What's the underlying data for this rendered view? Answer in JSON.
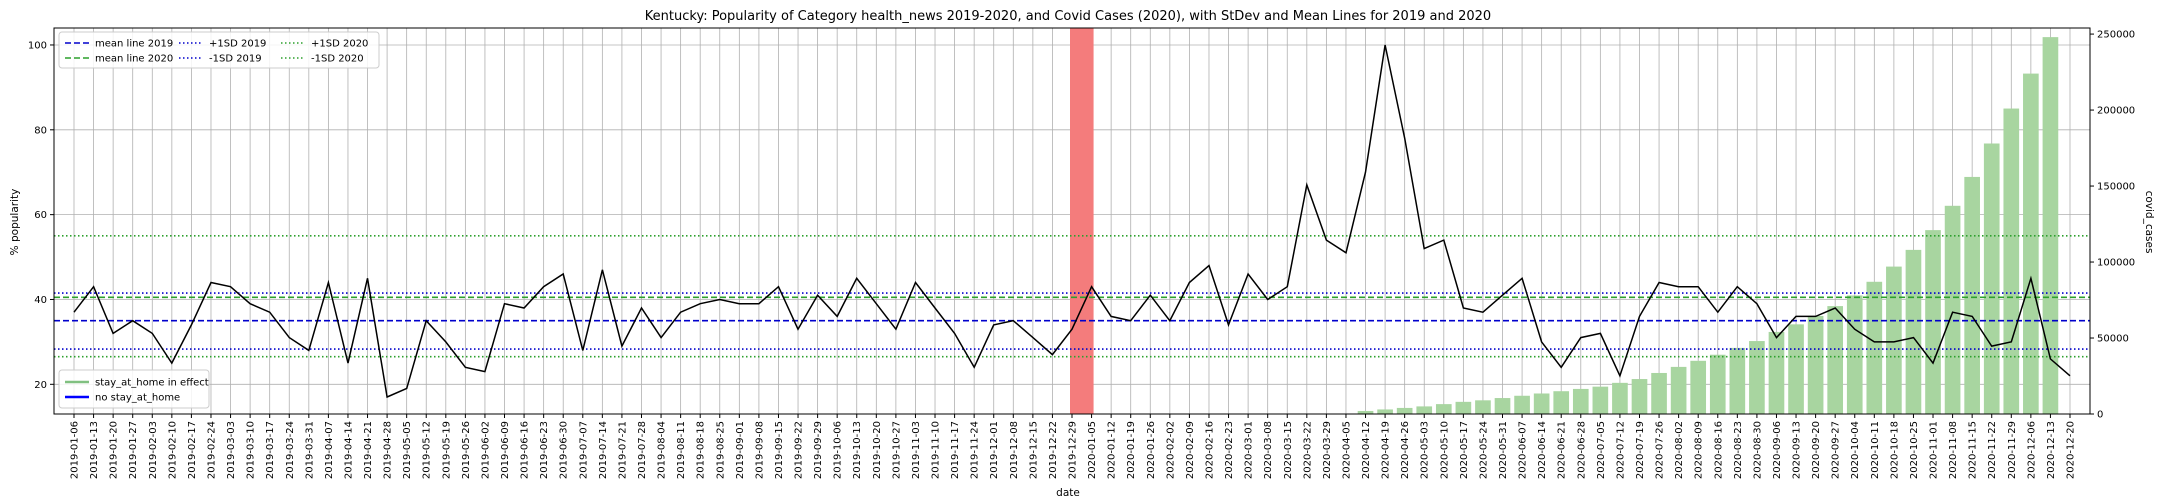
{
  "chart_data": {
    "type": "line+bar",
    "title": "Kentucky: Popularity of Category health_news 2019-2020, and Covid Cases (2020), with StDev and Mean Lines for 2019 and 2020",
    "xlabel": "date",
    "ylabel": "% popularity",
    "y2label": "covid_cases",
    "ylim": [
      13,
      104
    ],
    "y2lim": [
      0,
      254000
    ],
    "yticks": [
      20,
      40,
      60,
      80,
      100
    ],
    "y2ticks": [
      0,
      50000,
      100000,
      150000,
      200000,
      250000
    ],
    "grid": true,
    "dates": [
      "2019-01-06",
      "2019-01-13",
      "2019-01-20",
      "2019-01-27",
      "2019-02-03",
      "2019-02-10",
      "2019-02-17",
      "2019-02-24",
      "2019-03-03",
      "2019-03-10",
      "2019-03-17",
      "2019-03-24",
      "2019-03-31",
      "2019-04-07",
      "2019-04-14",
      "2019-04-21",
      "2019-04-28",
      "2019-05-05",
      "2019-05-12",
      "2019-05-19",
      "2019-05-26",
      "2019-06-02",
      "2019-06-09",
      "2019-06-16",
      "2019-06-23",
      "2019-06-30",
      "2019-07-07",
      "2019-07-14",
      "2019-07-21",
      "2019-07-28",
      "2019-08-04",
      "2019-08-11",
      "2019-08-18",
      "2019-08-25",
      "2019-09-01",
      "2019-09-08",
      "2019-09-15",
      "2019-09-22",
      "2019-09-29",
      "2019-10-06",
      "2019-10-13",
      "2019-10-20",
      "2019-10-27",
      "2019-11-03",
      "2019-11-10",
      "2019-11-17",
      "2019-11-24",
      "2019-12-01",
      "2019-12-08",
      "2019-12-15",
      "2019-12-22",
      "2019-12-29",
      "2020-01-05",
      "2020-01-12",
      "2020-01-19",
      "2020-01-26",
      "2020-02-02",
      "2020-02-09",
      "2020-02-16",
      "2020-02-23",
      "2020-03-01",
      "2020-03-08",
      "2020-03-15",
      "2020-03-22",
      "2020-03-29",
      "2020-04-05",
      "2020-04-12",
      "2020-04-19",
      "2020-04-26",
      "2020-05-03",
      "2020-05-10",
      "2020-05-17",
      "2020-05-24",
      "2020-05-31",
      "2020-06-07",
      "2020-06-14",
      "2020-06-21",
      "2020-06-28",
      "2020-07-05",
      "2020-07-12",
      "2020-07-19",
      "2020-07-26",
      "2020-08-02",
      "2020-08-09",
      "2020-08-16",
      "2020-08-23",
      "2020-08-30",
      "2020-09-06",
      "2020-09-13",
      "2020-09-20",
      "2020-09-27",
      "2020-10-04",
      "2020-10-11",
      "2020-10-18",
      "2020-10-25",
      "2020-11-01",
      "2020-11-08",
      "2020-11-15",
      "2020-11-22",
      "2020-11-29",
      "2020-12-06",
      "2020-12-13",
      "2020-12-20"
    ],
    "popularity": [
      37,
      43,
      32,
      35,
      32,
      25,
      34,
      44,
      43,
      39,
      37,
      31,
      28,
      44,
      25,
      45,
      17,
      19,
      35,
      30,
      24,
      23,
      39,
      38,
      43,
      46,
      28,
      47,
      29,
      38,
      31,
      37,
      39,
      40,
      39,
      39,
      43,
      33,
      41,
      36,
      45,
      39,
      33,
      44,
      38,
      32,
      24,
      34,
      35,
      31,
      27,
      33,
      43,
      36,
      35,
      41,
      35,
      44,
      48,
      34,
      46,
      40,
      43,
      67,
      54,
      51,
      70,
      100,
      78,
      52,
      54,
      38,
      37,
      41,
      45,
      30,
      24,
      31,
      32,
      22,
      36,
      44,
      43,
      43,
      37,
      43,
      39,
      31,
      36,
      36,
      38,
      33,
      30,
      30,
      31,
      25,
      37,
      36,
      29,
      30,
      45,
      26,
      22
    ],
    "covid_cases": [
      0,
      0,
      0,
      0,
      0,
      0,
      0,
      0,
      0,
      0,
      0,
      0,
      0,
      0,
      0,
      0,
      0,
      0,
      0,
      0,
      0,
      0,
      0,
      0,
      0,
      0,
      0,
      0,
      0,
      0,
      0,
      0,
      0,
      0,
      0,
      0,
      0,
      0,
      0,
      0,
      0,
      0,
      0,
      0,
      0,
      0,
      0,
      0,
      0,
      0,
      0,
      0,
      0,
      0,
      0,
      0,
      0,
      0,
      0,
      0,
      0,
      0,
      0,
      0,
      0,
      0,
      2000,
      3000,
      4000,
      5000,
      6500,
      8000,
      9000,
      10500,
      12000,
      13500,
      15000,
      16500,
      18000,
      20500,
      23000,
      27000,
      31000,
      35000,
      39000,
      43500,
      48000,
      54000,
      59000,
      64500,
      71000,
      78000,
      87000,
      97000,
      108000,
      121000,
      137000,
      156000,
      178000,
      201000,
      224000,
      248000,
      0
    ],
    "legend_lines": [
      {
        "label": "mean line 2019",
        "color": "#0000cc",
        "style": "dashed"
      },
      {
        "label": "mean line 2020",
        "color": "#2ca02c",
        "style": "dashed"
      },
      {
        "label": "+1SD 2019",
        "color": "#0000cc",
        "style": "dotted"
      },
      {
        "label": "-1SD 2019",
        "color": "#0000cc",
        "style": "dotted"
      },
      {
        "label": "+1SD 2020",
        "color": "#2ca02c",
        "style": "dotted"
      },
      {
        "label": "-1SD 2020",
        "color": "#2ca02c",
        "style": "dotted"
      }
    ],
    "legend_state": [
      {
        "label": "stay_at_home in effect",
        "color": "#80c080"
      },
      {
        "label": "no stay_at_home",
        "color": "#0000ff"
      }
    ],
    "hlines": [
      {
        "name": "mean-2019",
        "value": 35,
        "color": "#0000cc",
        "style": "dashed"
      },
      {
        "name": "mean-2020",
        "value": 40.5,
        "color": "#2ca02c",
        "style": "dashed"
      },
      {
        "name": "plus-sd-2019",
        "value": 41.5,
        "color": "#0000cc",
        "style": "dotted"
      },
      {
        "name": "minus-sd-2019",
        "value": 28.3,
        "color": "#0000cc",
        "style": "dotted"
      },
      {
        "name": "plus-sd-2020",
        "value": 55,
        "color": "#2ca02c",
        "style": "dotted"
      },
      {
        "name": "minus-sd-2020",
        "value": 26.5,
        "color": "#2ca02c",
        "style": "dotted"
      }
    ],
    "highlight_span": {
      "from": "2019-12-29",
      "to": "2020-01-05",
      "color": "#f47c7c"
    },
    "colors": {
      "line": "#000000",
      "bars": "#a8d5a0",
      "grid": "#b0b0b0"
    }
  }
}
